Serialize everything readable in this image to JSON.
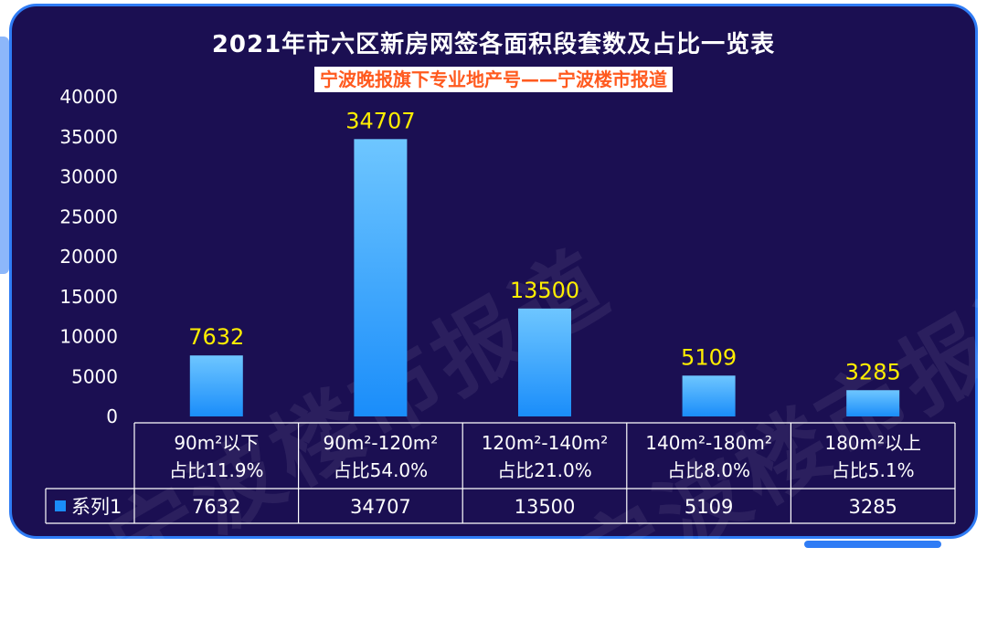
{
  "page": {
    "title": "2021年市六区新房网签各面积段套数及占比一览表",
    "subtitle": "宁波晚报旗下专业地产号——宁波楼市报道",
    "watermark": "宁波楼市报道"
  },
  "colors": {
    "background": "#1b0f52",
    "border": "#2f7cf5",
    "bar_top": "#6ec6ff",
    "bar_bottom": "#1a8dfa",
    "data_label": "#ffee00",
    "subtitle_text": "#ff5a1f"
  },
  "chart_data": {
    "type": "bar",
    "categories": [
      [
        "90m²以下",
        "占比11.9%"
      ],
      [
        "90m²-120m²",
        "占比54.0%"
      ],
      [
        "120m²-140m²",
        "占比21.0%"
      ],
      [
        "140m²-180m²",
        "占比8.0%"
      ],
      [
        "180m²以上",
        "占比5.1%"
      ]
    ],
    "series": [
      {
        "name": "系列1",
        "values": [
          7632,
          34707,
          13500,
          5109,
          3285
        ]
      }
    ],
    "ylim": [
      0,
      40000
    ],
    "yticks": [
      0,
      5000,
      10000,
      15000,
      20000,
      25000,
      30000,
      35000,
      40000
    ],
    "data_labels": true,
    "data_table": true,
    "grid": false,
    "legend": "data-table"
  }
}
